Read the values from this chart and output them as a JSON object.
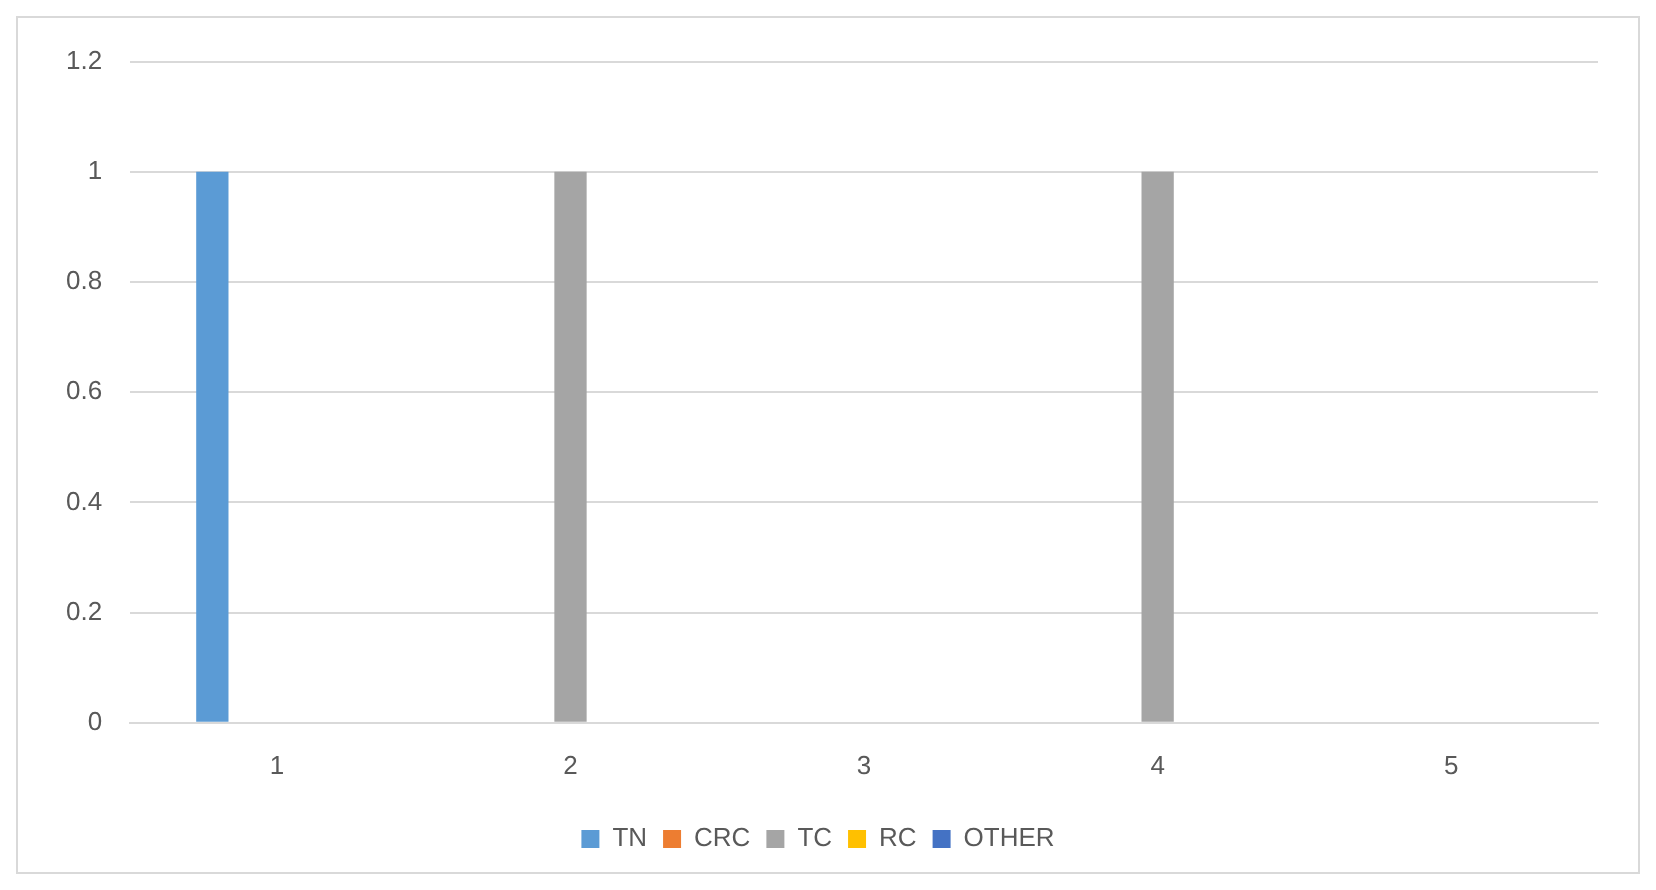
{
  "chart_data": {
    "type": "bar",
    "categories": [
      "1",
      "2",
      "3",
      "4",
      "5"
    ],
    "series": [
      {
        "name": "TN",
        "color": "#5b9bd5",
        "values": [
          1,
          0,
          0,
          0,
          0
        ]
      },
      {
        "name": "CRC",
        "color": "#ed7d31",
        "values": [
          0,
          0,
          0,
          0,
          0
        ]
      },
      {
        "name": "TC",
        "color": "#a5a5a5",
        "values": [
          0,
          1,
          0,
          1,
          0
        ]
      },
      {
        "name": "RC",
        "color": "#ffc000",
        "values": [
          0,
          0,
          0,
          0,
          0
        ]
      },
      {
        "name": "OTHER",
        "color": "#4472c4",
        "values": [
          0,
          0,
          0,
          0,
          0
        ]
      }
    ],
    "ylim": [
      0,
      1.2
    ],
    "yticks": [
      0,
      0.2,
      0.4,
      0.6,
      0.8,
      1,
      1.2
    ],
    "grid": "y",
    "legend": "bottom"
  }
}
